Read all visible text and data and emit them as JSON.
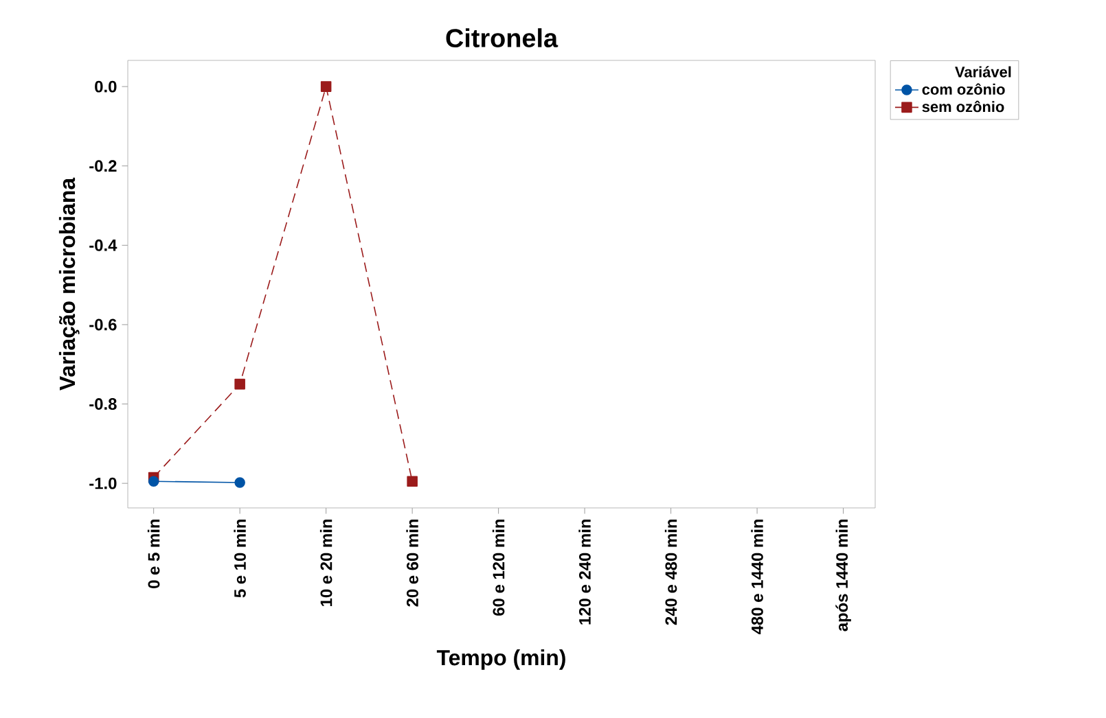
{
  "chart_data": {
    "type": "line",
    "title": "Citronela",
    "xlabel": "Tempo (min)",
    "ylabel": "Variação microbiana",
    "legend_title": "Variável",
    "categories": [
      "0 e 5 min",
      "5 e 10 min",
      "10 e 20 min",
      "20 e 60 min",
      "60 e 120 min",
      "120 e 240 min",
      "240 e 480 min",
      "480 e 1440 min",
      "após 1440 min"
    ],
    "series": [
      {
        "name": "com ozônio",
        "color": "#0054a6",
        "marker": "circle",
        "line_style": "solid",
        "values": [
          -0.995,
          -0.998,
          null,
          null,
          null,
          null,
          null,
          null,
          null
        ]
      },
      {
        "name": "sem ozônio",
        "color": "#9b1b1b",
        "marker": "square",
        "line_style": "dashed",
        "values": [
          -0.985,
          -0.75,
          0.0,
          -0.995,
          null,
          null,
          null,
          null,
          null
        ]
      }
    ],
    "ylim": [
      -1.062,
      0.066
    ],
    "yticks": [
      {
        "value": 0,
        "label": "0.0"
      },
      {
        "value": -0.2,
        "label": "-0.2"
      },
      {
        "value": -0.4,
        "label": "-0.4"
      },
      {
        "value": -0.6,
        "label": "-0.6"
      },
      {
        "value": -0.8,
        "label": "-0.8"
      },
      {
        "value": -1,
        "label": "-1.0"
      }
    ],
    "grid": false,
    "legend": "top right"
  }
}
